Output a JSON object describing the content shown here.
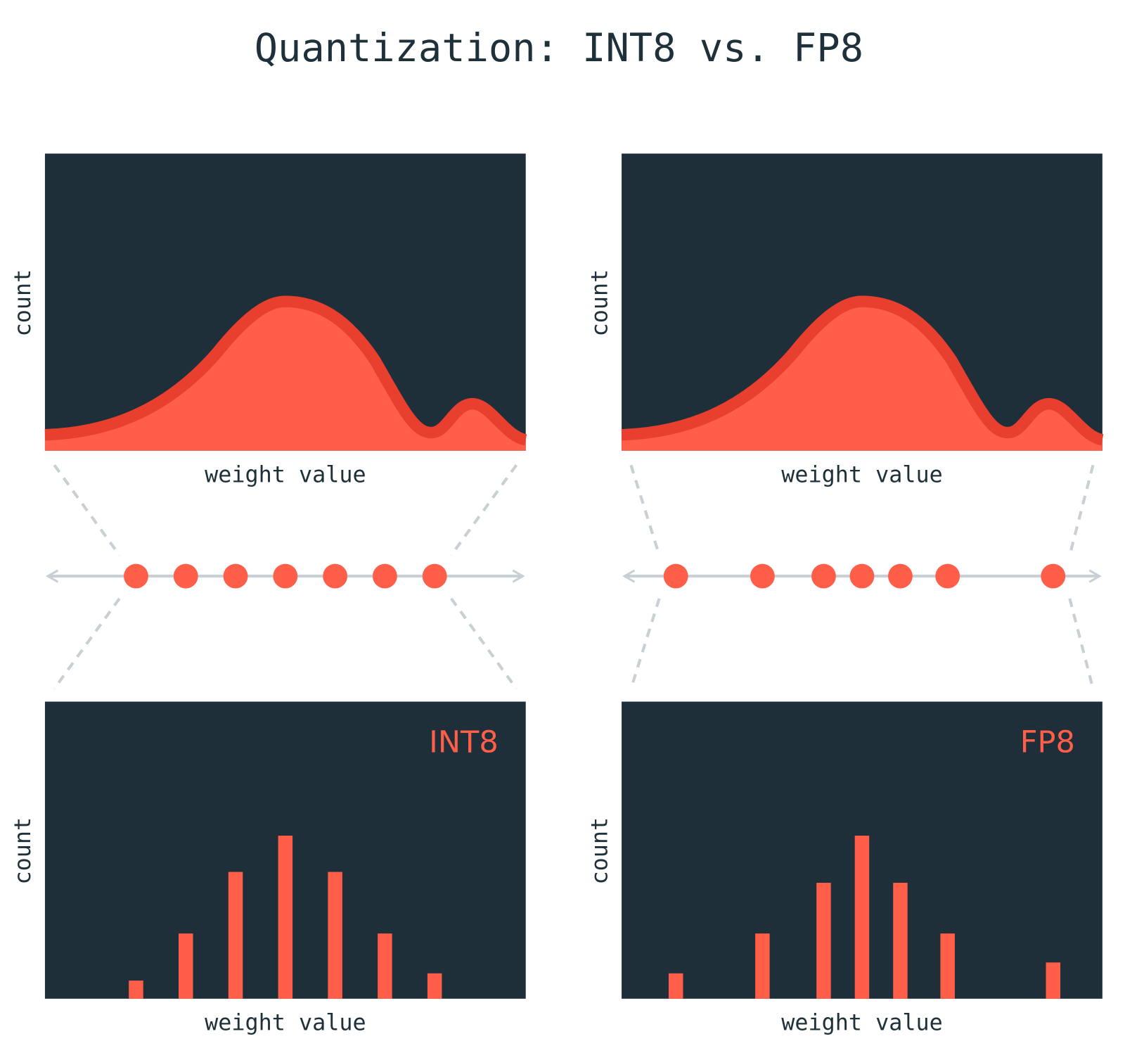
{
  "title": "Quantization: INT8 vs. FP8",
  "panels": [
    {
      "format": "INT8",
      "top_y_label": "count",
      "top_x_label": "weight value",
      "bottom_y_label": "count",
      "bottom_x_label": "weight value",
      "xlim": [
        -4.83,
        4.83
      ],
      "ylim": [
        0,
        82
      ],
      "levels": [
        -3,
        -2,
        -1,
        0,
        1,
        2,
        3
      ],
      "counts": [
        5,
        18,
        35,
        45,
        35,
        18,
        7
      ]
    },
    {
      "format": "FP8",
      "top_y_label": "count",
      "top_x_label": "weight value",
      "bottom_y_label": "count",
      "bottom_x_label": "weight value",
      "xlim": [
        -4.83,
        4.83
      ],
      "ylim": [
        0,
        82
      ],
      "levels": [
        -3.74,
        -2,
        -0.77,
        0,
        0.77,
        1.72,
        3.84
      ],
      "counts": [
        7,
        18,
        32,
        45,
        32,
        18,
        10
      ]
    }
  ]
}
